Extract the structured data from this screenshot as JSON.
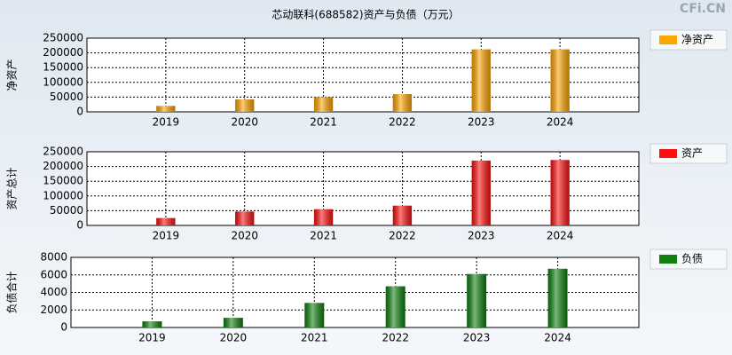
{
  "watermark": "CFi.CN",
  "chart_data": [
    {
      "type": "bar",
      "title": "芯动联科(688582)资产与负债（万元）",
      "ylabel": "净资产",
      "categories": [
        "2019",
        "2020",
        "2021",
        "2022",
        "2023",
        "2024"
      ],
      "series": [
        {
          "name": "净资产",
          "color": "#ffa500",
          "values": [
            20000,
            42000,
            50000,
            60000,
            212000,
            212000
          ]
        }
      ],
      "ylim": [
        0,
        250000
      ],
      "yticks": [
        0,
        50000,
        100000,
        150000,
        200000,
        250000
      ],
      "grid": true,
      "legend": "right"
    },
    {
      "type": "bar",
      "ylabel": "资产总计",
      "categories": [
        "2019",
        "2020",
        "2021",
        "2022",
        "2023",
        "2024"
      ],
      "series": [
        {
          "name": "资产",
          "color": "#ff1010",
          "values": [
            25000,
            47000,
            55000,
            67000,
            220000,
            222000
          ]
        }
      ],
      "ylim": [
        0,
        250000
      ],
      "yticks": [
        0,
        50000,
        100000,
        150000,
        200000,
        250000
      ],
      "grid": true,
      "legend": "right"
    },
    {
      "type": "bar",
      "ylabel": "负债合计",
      "categories": [
        "2019",
        "2020",
        "2021",
        "2022",
        "2023",
        "2024"
      ],
      "series": [
        {
          "name": "负债",
          "color": "#108010",
          "values": [
            700,
            1100,
            2800,
            4700,
            6100,
            6700
          ]
        }
      ],
      "ylim": [
        0,
        8000
      ],
      "yticks": [
        0,
        2000,
        4000,
        6000,
        8000
      ],
      "grid": true,
      "legend": "right"
    }
  ]
}
